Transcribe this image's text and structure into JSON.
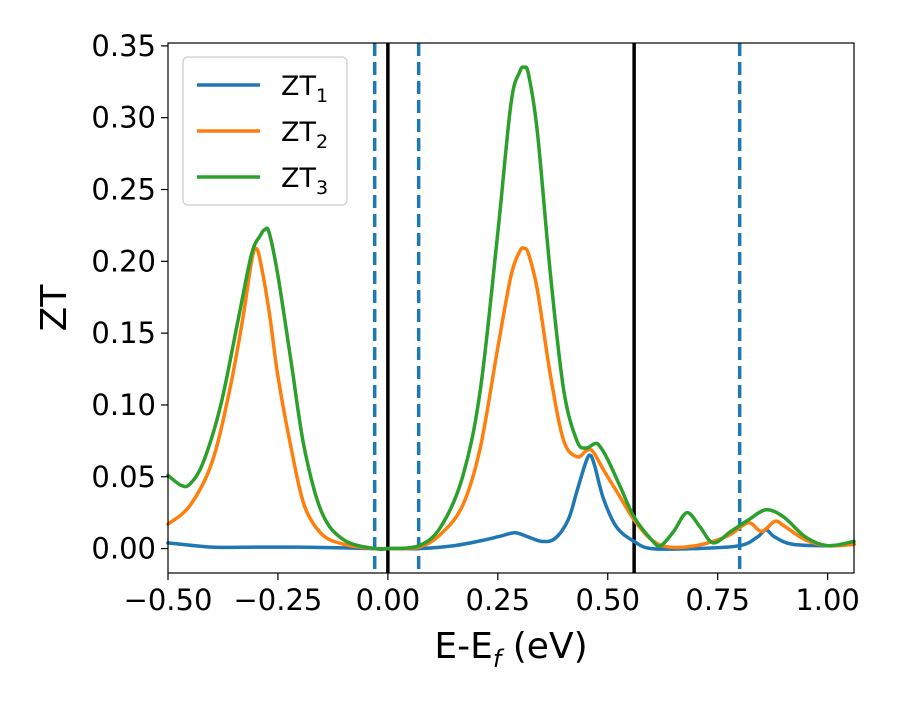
{
  "chart_data": {
    "type": "line",
    "xlabel": "E-E",
    "xlabel_sub": "f",
    "xlabel_unit": "(eV)",
    "ylabel": "ZT",
    "xlim": [
      -0.5,
      1.06
    ],
    "ylim": [
      -0.017,
      0.352
    ],
    "x_ticks": [
      -0.5,
      -0.25,
      0.0,
      0.25,
      0.5,
      0.75,
      1.0
    ],
    "x_tick_labels": [
      "−0.50",
      "−0.25",
      "0.00",
      "0.25",
      "0.50",
      "0.75",
      "1.00"
    ],
    "y_ticks": [
      0.0,
      0.05,
      0.1,
      0.15,
      0.2,
      0.25,
      0.3,
      0.35
    ],
    "y_tick_labels": [
      "0.00",
      "0.05",
      "0.10",
      "0.15",
      "0.20",
      "0.25",
      "0.30",
      "0.35"
    ],
    "grid": false,
    "legend_position": "top-left",
    "solid_vlines": [
      0.0,
      0.56
    ],
    "dashed_vlines": [
      -0.03,
      0.07,
      0.8
    ],
    "series": [
      {
        "name": "ZT",
        "name_sub": "1",
        "color": "#1f77b4",
        "x": [
          -0.5,
          -0.4,
          -0.3,
          -0.2,
          -0.1,
          -0.03,
          0.0,
          0.07,
          0.15,
          0.22,
          0.26,
          0.29,
          0.32,
          0.35,
          0.38,
          0.41,
          0.43,
          0.45,
          0.46,
          0.47,
          0.49,
          0.52,
          0.56,
          0.6,
          0.7,
          0.8,
          0.84,
          0.86,
          0.88,
          0.92,
          1.0,
          1.06
        ],
        "y": [
          0.004,
          0.001,
          0.001,
          0.001,
          0.0005,
          0.0,
          0.0,
          0.0,
          0.002,
          0.006,
          0.009,
          0.011,
          0.008,
          0.005,
          0.007,
          0.02,
          0.04,
          0.06,
          0.065,
          0.058,
          0.035,
          0.015,
          0.005,
          0.0,
          0.0,
          0.002,
          0.008,
          0.013,
          0.008,
          0.003,
          0.002,
          0.003
        ]
      },
      {
        "name": "ZT",
        "name_sub": "2",
        "color": "#ff7f0e",
        "x": [
          -0.5,
          -0.45,
          -0.4,
          -0.36,
          -0.33,
          -0.31,
          -0.3,
          -0.29,
          -0.27,
          -0.25,
          -0.22,
          -0.19,
          -0.15,
          -0.1,
          -0.03,
          0.0,
          0.07,
          0.12,
          0.17,
          0.21,
          0.25,
          0.28,
          0.3,
          0.31,
          0.32,
          0.34,
          0.37,
          0.4,
          0.43,
          0.45,
          0.46,
          0.47,
          0.49,
          0.52,
          0.56,
          0.6,
          0.64,
          0.7,
          0.75,
          0.78,
          0.82,
          0.85,
          0.88,
          0.9,
          0.95,
          1.0,
          1.06
        ],
        "y": [
          0.017,
          0.03,
          0.06,
          0.11,
          0.16,
          0.2,
          0.209,
          0.2,
          0.165,
          0.12,
          0.07,
          0.03,
          0.01,
          0.003,
          0.0,
          0.0,
          0.001,
          0.01,
          0.03,
          0.07,
          0.14,
          0.19,
          0.207,
          0.209,
          0.205,
          0.18,
          0.12,
          0.075,
          0.064,
          0.068,
          0.069,
          0.066,
          0.055,
          0.04,
          0.02,
          0.006,
          0.001,
          0.002,
          0.006,
          0.01,
          0.018,
          0.012,
          0.019,
          0.016,
          0.006,
          0.002,
          0.003
        ]
      },
      {
        "name": "ZT",
        "name_sub": "3",
        "color": "#2ca02c",
        "x": [
          -0.5,
          -0.47,
          -0.45,
          -0.42,
          -0.38,
          -0.34,
          -0.31,
          -0.29,
          -0.28,
          -0.27,
          -0.25,
          -0.22,
          -0.19,
          -0.15,
          -0.1,
          -0.03,
          0.0,
          0.07,
          0.12,
          0.17,
          0.21,
          0.25,
          0.28,
          0.3,
          0.31,
          0.32,
          0.34,
          0.37,
          0.4,
          0.43,
          0.45,
          0.47,
          0.48,
          0.5,
          0.53,
          0.56,
          0.6,
          0.62,
          0.65,
          0.68,
          0.71,
          0.74,
          0.78,
          0.82,
          0.86,
          0.9,
          0.95,
          1.0,
          1.06
        ],
        "y": [
          0.051,
          0.044,
          0.045,
          0.06,
          0.1,
          0.16,
          0.205,
          0.218,
          0.222,
          0.22,
          0.19,
          0.13,
          0.07,
          0.025,
          0.006,
          0.0,
          0.0,
          0.002,
          0.015,
          0.05,
          0.11,
          0.22,
          0.31,
          0.332,
          0.335,
          0.33,
          0.29,
          0.19,
          0.11,
          0.075,
          0.07,
          0.073,
          0.072,
          0.062,
          0.042,
          0.022,
          0.006,
          0.002,
          0.012,
          0.025,
          0.015,
          0.004,
          0.012,
          0.02,
          0.027,
          0.022,
          0.008,
          0.002,
          0.005
        ]
      }
    ]
  }
}
